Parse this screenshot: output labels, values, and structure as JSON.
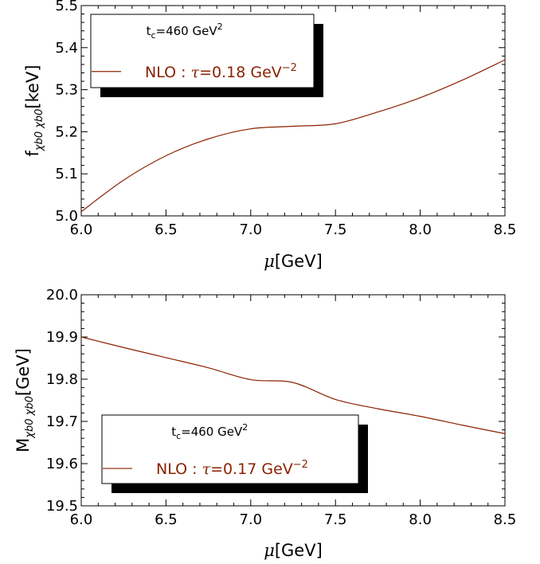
{
  "colors": {
    "series": "#8B2200",
    "frame": "#000000",
    "shadow": "#000000"
  },
  "chart_data": [
    {
      "type": "line",
      "xlabel": "μ[GeV]",
      "ylabel_main": "f",
      "ylabel_sub": "χb0 χb0",
      "ylabel_unit": "[keV]",
      "xlim": [
        6.0,
        8.5
      ],
      "ylim": [
        5.0,
        5.5
      ],
      "x_ticks": [
        6.0,
        6.5,
        7.0,
        7.5,
        8.0,
        8.5
      ],
      "x_tick_labels": [
        "6.0",
        "6.5",
        "7.0",
        "7.5",
        "8.0",
        "8.5"
      ],
      "y_ticks": [
        5.0,
        5.1,
        5.2,
        5.3,
        5.4,
        5.5
      ],
      "y_tick_labels": [
        "5.0",
        "5.1",
        "5.2",
        "5.3",
        "5.4",
        "5.5"
      ],
      "legend_placement": "top-left",
      "legend_header": "t_c=460 GeV^2",
      "legend_header_base": "t",
      "legend_header_sub": "c",
      "legend_header_rest": "=460 GeV",
      "legend_header_sup": "2",
      "series": [
        {
          "name": "NLO : τ=0.18 GeV^-2",
          "name_prefix": "NLO : ",
          "name_tau": "τ",
          "name_mid": "=0.18 GeV",
          "name_sup": "−2",
          "x": [
            6.0,
            6.25,
            6.5,
            6.75,
            7.0,
            7.25,
            7.5,
            7.75,
            8.0,
            8.25,
            8.5
          ],
          "y": [
            5.01,
            5.085,
            5.143,
            5.183,
            5.207,
            5.213,
            5.219,
            5.247,
            5.281,
            5.323,
            5.371
          ]
        }
      ]
    },
    {
      "type": "line",
      "xlabel": "μ[GeV]",
      "ylabel_main": "M",
      "ylabel_sub": "χb0 χb0",
      "ylabel_unit": "[GeV]",
      "xlim": [
        6.0,
        8.5
      ],
      "ylim": [
        19.5,
        20.0
      ],
      "x_ticks": [
        6.0,
        6.5,
        7.0,
        7.5,
        8.0,
        8.5
      ],
      "x_tick_labels": [
        "6.0",
        "6.5",
        "7.0",
        "7.5",
        "8.0",
        "8.5"
      ],
      "y_ticks": [
        19.5,
        19.6,
        19.7,
        19.8,
        19.9,
        20.0
      ],
      "y_tick_labels": [
        "19.5",
        "19.6",
        "19.7",
        "19.8",
        "19.9",
        "20.0"
      ],
      "legend_placement": "bottom-left",
      "legend_header": "t_c=460 GeV^2",
      "legend_header_base": "t",
      "legend_header_sub": "c",
      "legend_header_rest": "=460 GeV",
      "legend_header_sup": "2",
      "series": [
        {
          "name": "NLO : τ=0.17 GeV^-2",
          "name_prefix": "NLO : ",
          "name_tau": "τ",
          "name_mid": "=0.17 GeV",
          "name_sup": "−2",
          "x": [
            6.0,
            6.25,
            6.5,
            6.75,
            7.0,
            7.25,
            7.5,
            7.75,
            8.0,
            8.25,
            8.5
          ],
          "y": [
            19.9,
            19.875,
            19.851,
            19.827,
            19.799,
            19.792,
            19.752,
            19.73,
            19.712,
            19.691,
            19.671
          ]
        }
      ]
    }
  ]
}
